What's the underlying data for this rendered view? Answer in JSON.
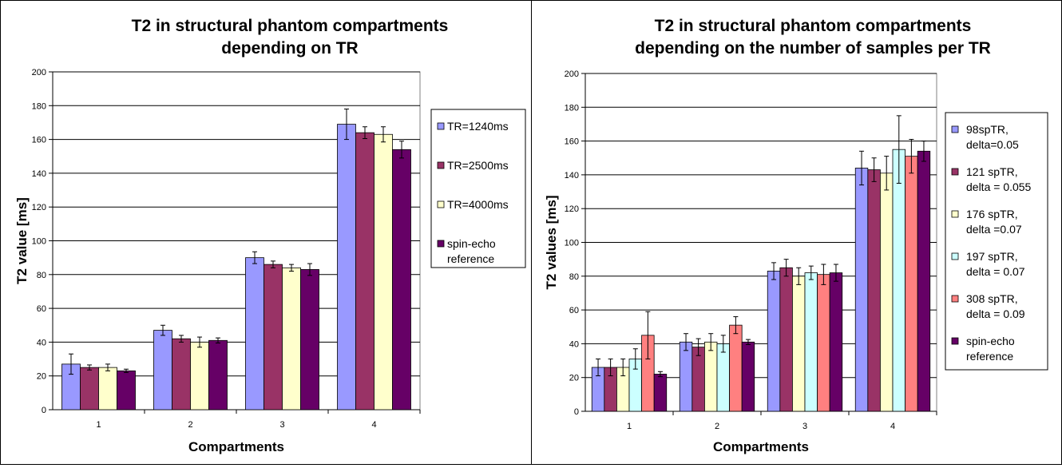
{
  "chart_data": [
    {
      "type": "bar",
      "title": "T2 in structural phantom compartments depending on TR",
      "title_lines": [
        "T2 in structural phantom compartments",
        "depending on TR"
      ],
      "xlabel": "Compartments",
      "ylabel": "T2 value [ms]",
      "ylim": [
        0,
        200
      ],
      "yticks": [
        "0",
        "20",
        "40",
        "60",
        "80",
        "100",
        "120",
        "140",
        "160",
        "180",
        "200"
      ],
      "categories": [
        "1",
        "2",
        "3",
        "4"
      ],
      "grid": true,
      "legend_position": "right",
      "series": [
        {
          "name": "TR=1240ms",
          "legend_lines": [
            "TR=1240ms"
          ],
          "color": "#9999ff",
          "values": [
            27,
            47,
            90,
            169
          ],
          "errors": [
            6,
            3,
            3.5,
            9
          ]
        },
        {
          "name": "TR=2500ms",
          "legend_lines": [
            "TR=2500ms"
          ],
          "color": "#993366",
          "values": [
            25,
            42,
            86,
            164
          ],
          "errors": [
            1.5,
            2,
            2,
            3.5
          ]
        },
        {
          "name": "TR=4000ms",
          "legend_lines": [
            "TR=4000ms"
          ],
          "color": "#ffffcc",
          "values": [
            25,
            40,
            84,
            163
          ],
          "errors": [
            2,
            3,
            2,
            4.5
          ]
        },
        {
          "name": "spin-echo reference",
          "legend_lines": [
            "spin-echo",
            "reference"
          ],
          "color": "#660066",
          "values": [
            23,
            41,
            83,
            154
          ],
          "errors": [
            1,
            1.5,
            3.5,
            5
          ]
        }
      ]
    },
    {
      "type": "bar",
      "title": "T2 in structural phantom compartments depending on the number of samples per TR",
      "title_lines": [
        "T2 in structural phantom compartments",
        "depending on the number of samples per TR"
      ],
      "xlabel": "Compartments",
      "ylabel": "T2 values [ms]",
      "ylim": [
        0,
        200
      ],
      "yticks": [
        "0",
        "20",
        "40",
        "60",
        "80",
        "100",
        "120",
        "140",
        "160",
        "180",
        "200"
      ],
      "categories": [
        "1",
        "2",
        "3",
        "4"
      ],
      "grid": true,
      "legend_position": "right",
      "series": [
        {
          "name": "98spTR, delta=0.05",
          "legend_lines": [
            "98spTR,",
            "delta=0.05"
          ],
          "color": "#9999ff",
          "values": [
            26,
            41,
            83,
            144
          ],
          "errors": [
            5,
            5,
            5,
            10
          ]
        },
        {
          "name": "121 spTR, delta = 0.055",
          "legend_lines": [
            "121 spTR,",
            "delta = 0.055"
          ],
          "color": "#993366",
          "values": [
            26,
            38,
            85,
            143
          ],
          "errors": [
            5,
            5,
            5,
            7
          ]
        },
        {
          "name": "176 spTR, delta =0.07",
          "legend_lines": [
            "176 spTR,",
            "delta =0.07"
          ],
          "color": "#ffffcc",
          "values": [
            26,
            41,
            80,
            141
          ],
          "errors": [
            5,
            5,
            5,
            10
          ]
        },
        {
          "name": "197 spTR, delta = 0.07",
          "legend_lines": [
            "197 spTR,",
            "delta = 0.07"
          ],
          "color": "#ccffff",
          "values": [
            31,
            40,
            82,
            155
          ],
          "errors": [
            6,
            5,
            4,
            20
          ]
        },
        {
          "name": "308 spTR, delta = 0.09",
          "legend_lines": [
            "308 spTR,",
            "delta = 0.09"
          ],
          "color": "#ff8080",
          "values": [
            45,
            51,
            81,
            151
          ],
          "errors": [
            14,
            5,
            6,
            10
          ]
        },
        {
          "name": "spin-echo reference",
          "legend_lines": [
            "spin-echo",
            "reference"
          ],
          "color": "#660066",
          "values": [
            22,
            41,
            82,
            154
          ],
          "errors": [
            1.5,
            1.5,
            5,
            6
          ]
        }
      ]
    }
  ]
}
